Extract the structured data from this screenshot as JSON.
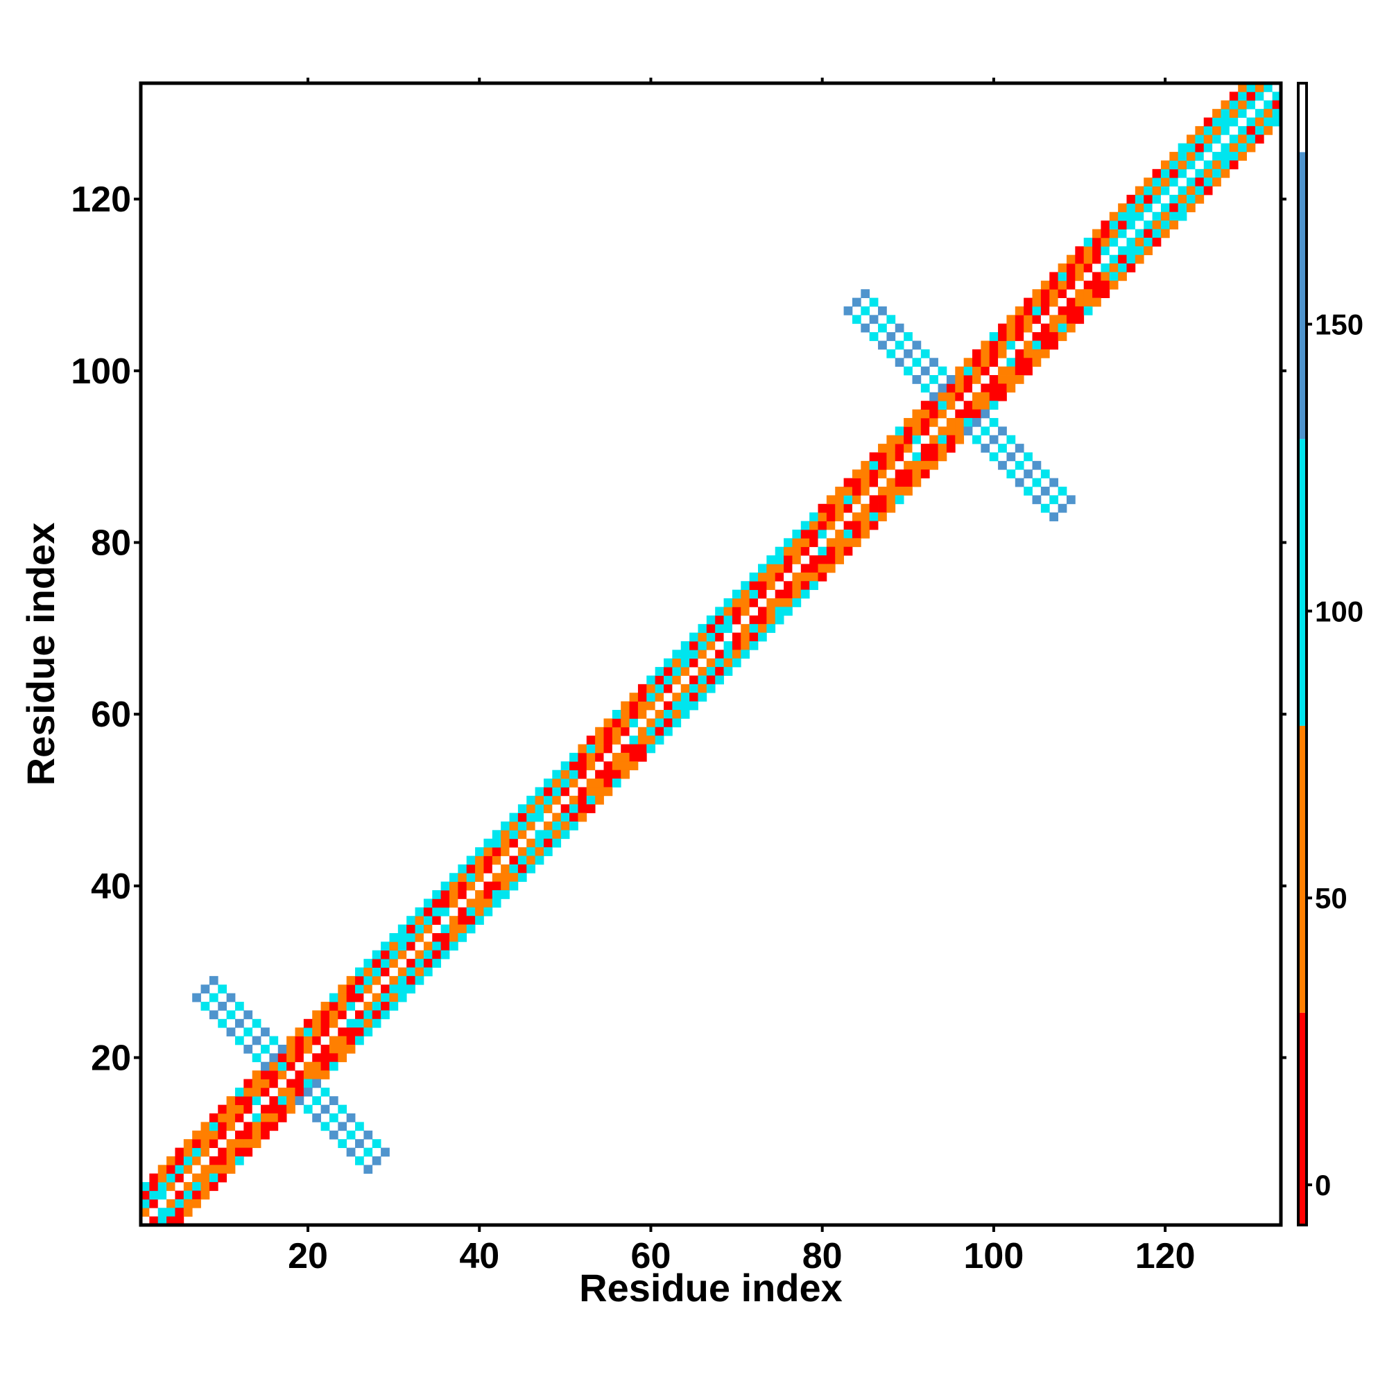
{
  "chart_data": {
    "type": "heatmap",
    "title": "",
    "xlabel": "Residue index",
    "ylabel": "Residue index",
    "xlim": [
      1,
      133
    ],
    "ylim": [
      1,
      133
    ],
    "x_ticks": [
      20,
      40,
      60,
      80,
      100,
      120
    ],
    "y_ticks": [
      20,
      40,
      60,
      80,
      100,
      120
    ],
    "grid": false,
    "colorbar": {
      "ticks": [
        0,
        50,
        100,
        150
      ],
      "range": [
        -7,
        192
      ],
      "bands": [
        {
          "from": -7,
          "to": 30,
          "color": "#ff0000"
        },
        {
          "from": 30,
          "to": 80,
          "color": "#ff7f00"
        },
        {
          "from": 80,
          "to": 130,
          "color": "#00e5ee"
        },
        {
          "from": 130,
          "to": 180,
          "color": "#4f94cd"
        },
        {
          "from": 180,
          "to": 192,
          "color": "#ffffff"
        }
      ]
    },
    "diagonal_band": {
      "description_values": "contacts near main diagonal, |i-j| <= 4",
      "segments": [
        {
          "from": 1,
          "to": 8,
          "values": [
            60,
            40,
            100,
            20,
            60
          ]
        },
        {
          "from": 8,
          "to": 17,
          "values": [
            50,
            20,
            60,
            40,
            10
          ]
        },
        {
          "from": 17,
          "to": 26,
          "values": [
            30,
            10,
            50,
            20,
            70
          ]
        },
        {
          "from": 26,
          "to": 36,
          "values": [
            40,
            60,
            100,
            20,
            100
          ]
        },
        {
          "from": 36,
          "to": 44,
          "values": [
            20,
            50,
            10,
            40,
            100
          ]
        },
        {
          "from": 44,
          "to": 52,
          "values": [
            60,
            70,
            100,
            40,
            110
          ]
        },
        {
          "from": 52,
          "to": 60,
          "values": [
            50,
            20,
            60,
            10,
            70
          ]
        },
        {
          "from": 60,
          "to": 70,
          "values": [
            40,
            60,
            100,
            20,
            110
          ]
        },
        {
          "from": 70,
          "to": 80,
          "values": [
            50,
            20,
            60,
            40,
            100
          ]
        },
        {
          "from": 80,
          "to": 95,
          "values": [
            10,
            40,
            20,
            60,
            30
          ]
        },
        {
          "from": 95,
          "to": 114,
          "values": [
            30,
            10,
            50,
            20,
            60
          ]
        },
        {
          "from": 114,
          "to": 133,
          "values": [
            50,
            110,
            60,
            100,
            40
          ]
        }
      ]
    },
    "antidiagonal_arms": [
      {
        "center": 18,
        "half_length": 10,
        "half_width": 1.6,
        "values": [
          140,
          110
        ]
      },
      {
        "center": 96,
        "half_length": 12,
        "half_width": 1.6,
        "values": [
          140,
          110
        ]
      }
    ]
  }
}
